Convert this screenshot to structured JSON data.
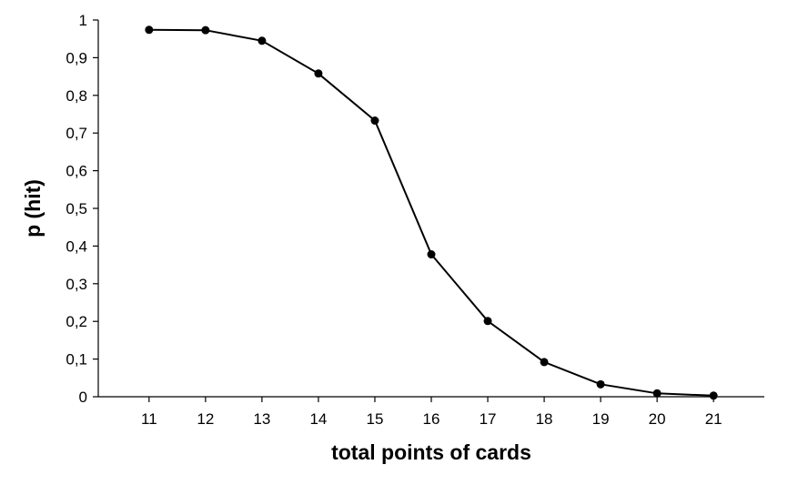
{
  "chart_data": {
    "type": "line",
    "title": "",
    "xlabel": "total points of cards",
    "ylabel": "p (hit)",
    "x": [
      11,
      12,
      13,
      14,
      15,
      16,
      17,
      18,
      19,
      20,
      21
    ],
    "series": [
      {
        "values": [
          0.974,
          0.973,
          0.945,
          0.858,
          0.733,
          0.378,
          0.201,
          0.092,
          0.033,
          0.009,
          0.003
        ]
      }
    ],
    "x_ticks": [
      "11",
      "12",
      "13",
      "14",
      "15",
      "16",
      "17",
      "18",
      "19",
      "20",
      "21"
    ],
    "y_ticks": [
      "0",
      "0,1",
      "0,2",
      "0,3",
      "0,4",
      "0,5",
      "0,6",
      "0,7",
      "0,8",
      "0,9",
      "1"
    ],
    "xlim": [
      10.1,
      21.9
    ],
    "ylim": [
      0,
      1
    ],
    "grid": false,
    "legend": "none",
    "line_color": "#000000",
    "marker": "filled-circle"
  }
}
